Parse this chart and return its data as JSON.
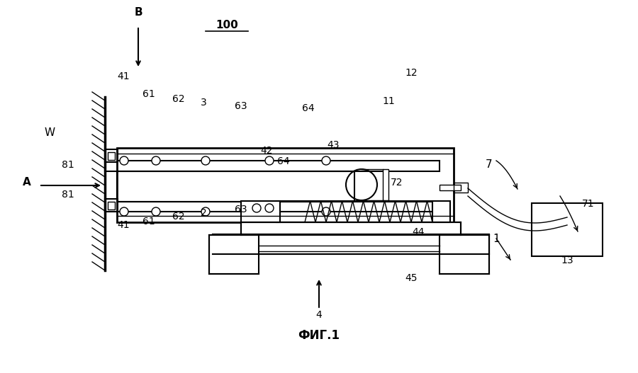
{
  "title": "ФИГ.1",
  "label_100": "100",
  "label_B": "B",
  "label_A": "A",
  "label_W": "W",
  "bg_color": "#ffffff",
  "line_color": "#000000",
  "fig_width": 9.0,
  "fig_height": 5.27,
  "dpi": 100
}
